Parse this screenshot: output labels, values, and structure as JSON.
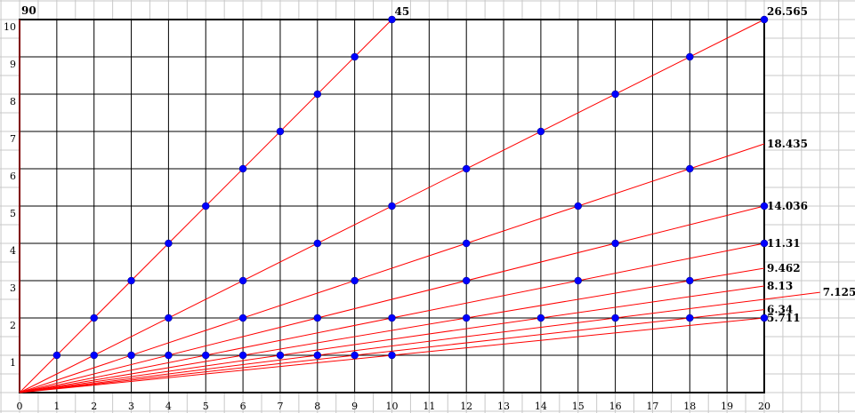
{
  "chart_data": {
    "type": "line",
    "title": "",
    "xlabel": "",
    "ylabel": "",
    "xlim": [
      0,
      20
    ],
    "ylim": [
      0,
      10
    ],
    "grid": true,
    "grid_color": "#000000",
    "background_grid_color": "#c8c8c8",
    "line_color": "#ff0000",
    "point_color": "#0000ff",
    "x_ticks": [
      "0",
      "1",
      "2",
      "3",
      "4",
      "5",
      "6",
      "7",
      "8",
      "9",
      "10",
      "11",
      "12",
      "13",
      "14",
      "15",
      "16",
      "17",
      "18",
      "19",
      "20"
    ],
    "y_ticks": [
      "1",
      "2",
      "3",
      "4",
      "5",
      "6",
      "7",
      "8",
      "9",
      "10"
    ],
    "series": [
      {
        "label": "90",
        "end": [
          0,
          10
        ],
        "points": []
      },
      {
        "label": "45",
        "end": [
          10,
          10
        ],
        "points": [
          [
            1,
            1
          ],
          [
            2,
            2
          ],
          [
            3,
            3
          ],
          [
            4,
            4
          ],
          [
            5,
            5
          ],
          [
            6,
            6
          ],
          [
            7,
            7
          ],
          [
            8,
            8
          ],
          [
            9,
            9
          ],
          [
            10,
            10
          ]
        ]
      },
      {
        "label": "26.565",
        "end": [
          20,
          10
        ],
        "points": [
          [
            2,
            1
          ],
          [
            4,
            2
          ],
          [
            6,
            3
          ],
          [
            8,
            4
          ],
          [
            10,
            5
          ],
          [
            12,
            6
          ],
          [
            14,
            7
          ],
          [
            16,
            8
          ],
          [
            18,
            9
          ],
          [
            20,
            10
          ]
        ]
      },
      {
        "label": "18.435",
        "end": [
          20,
          6.667
        ],
        "points": [
          [
            3,
            1
          ],
          [
            6,
            2
          ],
          [
            9,
            3
          ],
          [
            12,
            4
          ],
          [
            15,
            5
          ],
          [
            18,
            6
          ]
        ]
      },
      {
        "label": "14.036",
        "end": [
          20,
          5
        ],
        "points": [
          [
            4,
            1
          ],
          [
            8,
            2
          ],
          [
            12,
            3
          ],
          [
            16,
            4
          ],
          [
            20,
            5
          ]
        ]
      },
      {
        "label": "11.31",
        "end": [
          20,
          4
        ],
        "points": [
          [
            5,
            1
          ],
          [
            10,
            2
          ],
          [
            15,
            3
          ],
          [
            20,
            4
          ]
        ]
      },
      {
        "label": "9.462",
        "end": [
          20,
          3.333
        ],
        "points": [
          [
            6,
            1
          ],
          [
            12,
            2
          ],
          [
            18,
            3
          ]
        ]
      },
      {
        "label": "8.13",
        "end": [
          20,
          2.857
        ],
        "points": [
          [
            7,
            1
          ],
          [
            14,
            2
          ]
        ]
      },
      {
        "label": "7.125",
        "end": [
          21.5,
          2.6875
        ],
        "points": [
          [
            8,
            1
          ],
          [
            16,
            2
          ]
        ]
      },
      {
        "label": "6.34",
        "end": [
          20,
          2.222
        ],
        "points": [
          [
            9,
            1
          ],
          [
            18,
            2
          ]
        ]
      },
      {
        "label": "5.711",
        "end": [
          20,
          2
        ],
        "points": [
          [
            10,
            1
          ],
          [
            20,
            2
          ]
        ]
      }
    ]
  }
}
